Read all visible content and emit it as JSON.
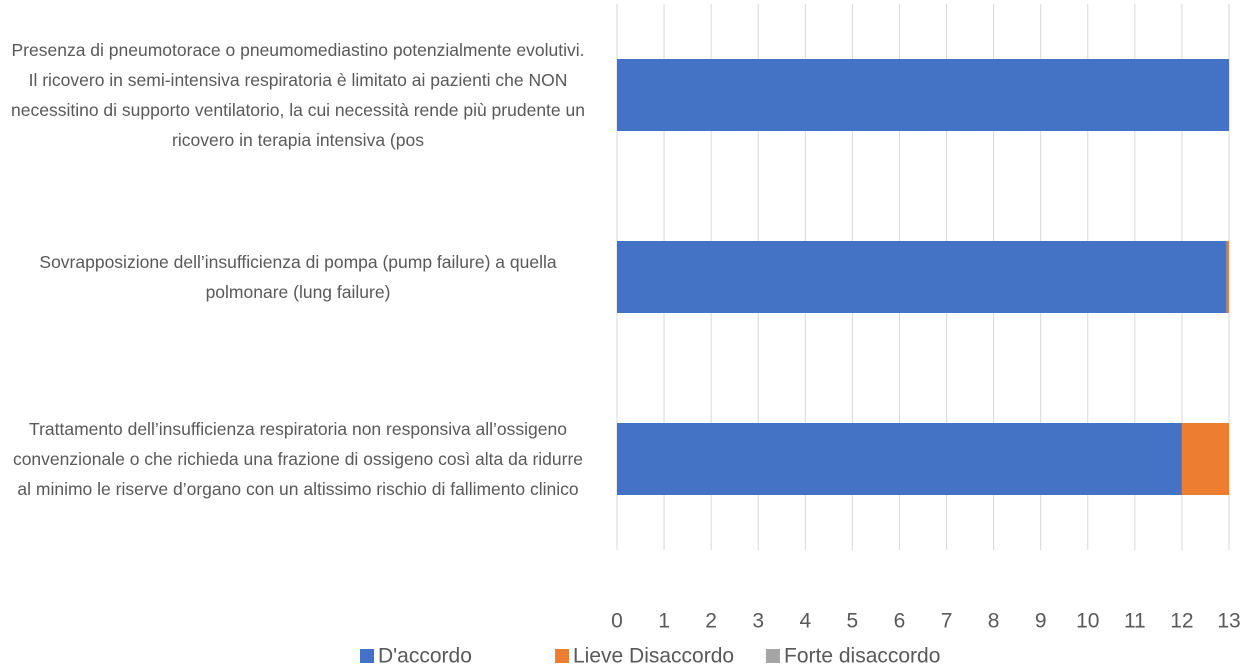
{
  "chart_data": {
    "type": "bar",
    "orientation": "horizontal",
    "stacked": true,
    "categories": [
      "Presenza di pneumotorace o pneumomediastino potenzialmente evolutivi. Il ricovero in semi-intensiva respiratoria è limitato ai pazienti che NON necessitino di supporto ventilatorio, la cui necessità rende più prudente un ricovero in terapia intensiva (pos",
      "Sovrapposizione dell’insufficienza di pompa (pump failure) a quella polmonare (lung failure)",
      "Trattamento dell’insufficienza respiratoria non responsiva all’ossigeno convenzionale o che richieda una frazione di ossigeno così alta da ridurre al minimo le riserve d’organo con un altissimo rischio di fallimento clinico"
    ],
    "series": [
      {
        "name": "D'accordo",
        "color": "#4472c4",
        "values": [
          13,
          12.95,
          12
        ]
      },
      {
        "name": "Lieve Disaccordo",
        "color": "#ed7d31",
        "values": [
          0,
          0.05,
          1
        ]
      },
      {
        "name": "Forte disaccordo",
        "color": "#a5a5a5",
        "values": [
          0,
          0,
          0
        ]
      }
    ],
    "xlim": [
      0,
      13
    ],
    "xticks": [
      0,
      1,
      2,
      3,
      4,
      5,
      6,
      7,
      8,
      9,
      10,
      11,
      12,
      13
    ],
    "grid": true,
    "legend": "bottom"
  }
}
